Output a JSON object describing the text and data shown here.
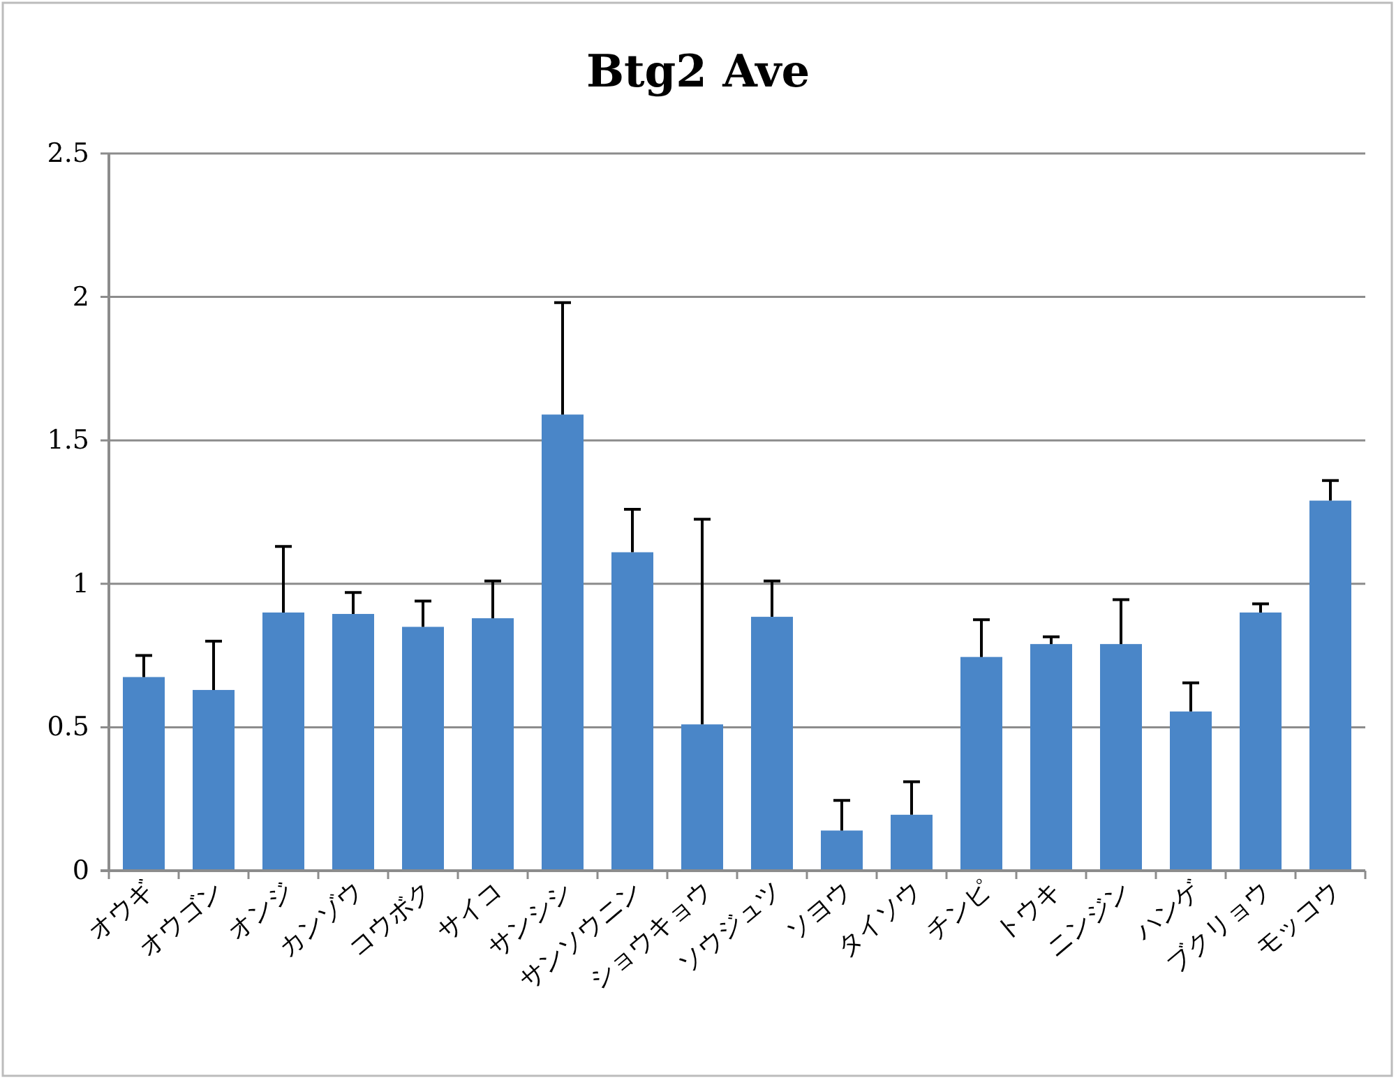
{
  "chart_data": {
    "type": "bar",
    "title": "Btg2 Ave",
    "categories": [
      "オウギ",
      "オウゴン",
      "オンジ",
      "カンゾウ",
      "コウボク",
      "サイコ",
      "サンシシ",
      "サンソウニン",
      "ショウキョウ",
      "ソウジュツ",
      "ソヨウ",
      "タイソウ",
      "チンピ",
      "トウキ",
      "ニンジン",
      "ハンゲ",
      "ブクリョウ",
      "モッコウ"
    ],
    "values": [
      0.675,
      0.63,
      0.9,
      0.895,
      0.85,
      0.88,
      1.59,
      1.11,
      0.51,
      0.885,
      0.14,
      0.195,
      0.745,
      0.79,
      0.79,
      0.555,
      0.9,
      1.29
    ],
    "errors": [
      [
        0.675,
        0.75
      ],
      [
        0.63,
        0.8
      ],
      [
        0.9,
        1.13
      ],
      [
        0.895,
        0.97
      ],
      [
        0.85,
        0.94
      ],
      [
        0.88,
        1.01
      ],
      [
        1.59,
        1.98
      ],
      [
        1.11,
        1.26
      ],
      [
        0.51,
        1.225
      ],
      [
        0.885,
        1.01
      ],
      [
        0.14,
        0.245
      ],
      [
        0.195,
        0.31
      ],
      [
        0.745,
        0.875
      ],
      [
        0.79,
        0.815
      ],
      [
        0.79,
        0.945
      ],
      [
        0.555,
        0.655
      ],
      [
        0.9,
        0.93
      ],
      [
        1.29,
        1.36
      ]
    ],
    "color": "#4a86c8",
    "ylim": [
      0,
      2.5
    ],
    "yticks": [
      0,
      0.5,
      1,
      1.5,
      2,
      2.5
    ],
    "grid": "y"
  }
}
